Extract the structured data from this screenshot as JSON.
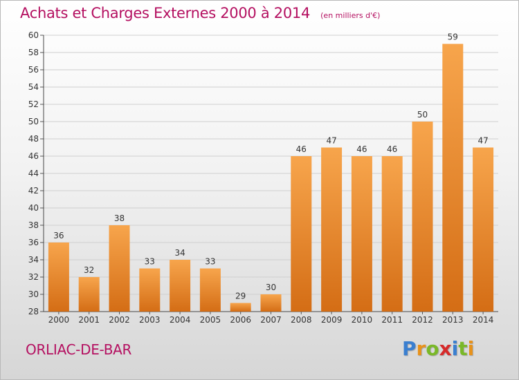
{
  "header": {
    "title": "Achats et Charges Externes 2000 à 2014",
    "subtitle": "(en milliers d'€)"
  },
  "footer": {
    "commune": "ORLIAC-DE-BAR",
    "logo_text": "Proxiti",
    "logo_colors": [
      "#3a7fd0",
      "#e8921a",
      "#7ab828",
      "#d62a2a",
      "#3a7fd0",
      "#7ab828",
      "#e8921a"
    ]
  },
  "colors": {
    "title": "#b40f60",
    "bar_light": "#f7a54c",
    "bar_dark": "#d46d15",
    "grid": "#cfcfcf"
  },
  "chart_data": {
    "type": "bar",
    "title": "Achats et Charges Externes 2000 à 2014",
    "subtitle": "(en milliers d'€)",
    "xlabel": "",
    "ylabel": "",
    "categories": [
      "2000",
      "2001",
      "2002",
      "2003",
      "2004",
      "2005",
      "2006",
      "2007",
      "2008",
      "2009",
      "2010",
      "2011",
      "2012",
      "2013",
      "2014"
    ],
    "values": [
      36,
      32,
      38,
      33,
      34,
      33,
      29,
      30,
      46,
      47,
      46,
      46,
      50,
      59,
      47
    ],
    "ylim": [
      28,
      60
    ],
    "yticks": [
      28,
      30,
      32,
      34,
      36,
      38,
      40,
      42,
      44,
      46,
      48,
      50,
      52,
      54,
      56,
      58,
      60
    ],
    "grid": true,
    "data_labels": true
  }
}
